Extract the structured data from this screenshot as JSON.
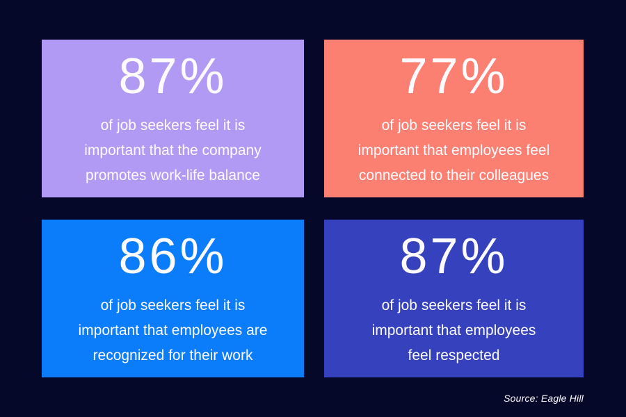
{
  "page": {
    "background": "#060829",
    "text_color": "#fdfbff",
    "source_label": "Source: Eagle Hill"
  },
  "chart_data": {
    "type": "table",
    "description": "Infographic of four stat cards about what job seekers feel is important",
    "categories": [
      "the company promotes work-life balance",
      "employees feel connected to their colleagues",
      "employees are recognized for their work",
      "employees feel respected"
    ],
    "values": [
      87,
      77,
      86,
      87
    ],
    "unit": "%",
    "source": "Source: Eagle Hill"
  },
  "cards": [
    {
      "value": "87%",
      "color": "#b09af3",
      "lines": [
        "of job seekers feel it is",
        "important that the company",
        "promotes work-life balance"
      ]
    },
    {
      "value": "77%",
      "color": "#fb8071",
      "lines": [
        "of job seekers feel it is",
        "important that employees feel",
        "connected to their colleagues"
      ]
    },
    {
      "value": "86%",
      "color": "#0b7dfb",
      "lines": [
        "of job seekers feel it is",
        "important that employees are",
        "recognized for their work"
      ]
    },
    {
      "value": "87%",
      "color": "#3541bd",
      "lines": [
        "of job seekers feel it is",
        "important that employees",
        "feel respected"
      ]
    }
  ]
}
